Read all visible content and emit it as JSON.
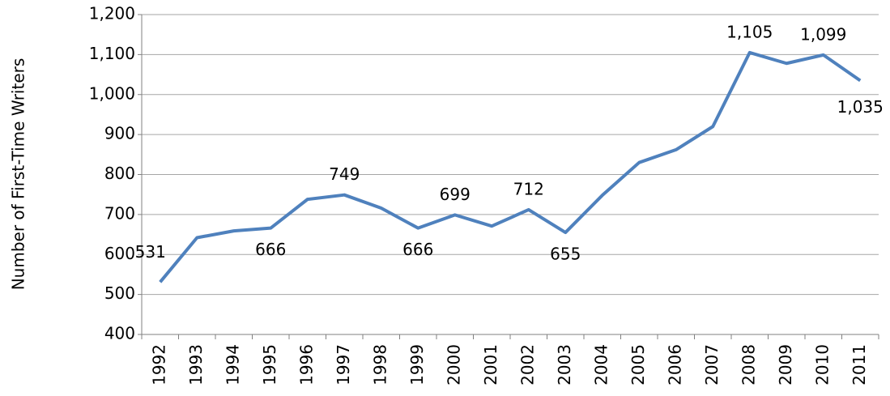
{
  "chart_data": {
    "type": "line",
    "y_label": "Number of First-Time Writers",
    "categories": [
      "1992",
      "1993",
      "1994",
      "1995",
      "1996",
      "1997",
      "1998",
      "1999",
      "2000",
      "2001",
      "2002",
      "2003",
      "2004",
      "2005",
      "2006",
      "2007",
      "2008",
      "2009",
      "2010",
      "2011"
    ],
    "series": [
      {
        "name": "First-Time Writers",
        "color": "#4f81bd",
        "values": [
          531,
          642,
          659,
          666,
          738,
          749,
          716,
          666,
          699,
          671,
          712,
          655,
          748,
          830,
          862,
          920,
          1105,
          1078,
          1099,
          1035
        ],
        "value_labels": [
          "531",
          null,
          null,
          "666",
          null,
          "749",
          null,
          "666",
          "699",
          null,
          "712",
          "655",
          null,
          null,
          null,
          null,
          "1,105",
          null,
          "1,099",
          "1,035"
        ]
      }
    ],
    "ylim": [
      400,
      1200
    ],
    "yticks": [
      400,
      500,
      600,
      700,
      800,
      900,
      {
        "value": 1000,
        "label": "1,000"
      },
      {
        "value": 1100,
        "label": "1,100"
      },
      {
        "value": 1200,
        "label": "1,200"
      }
    ],
    "grid": true
  }
}
